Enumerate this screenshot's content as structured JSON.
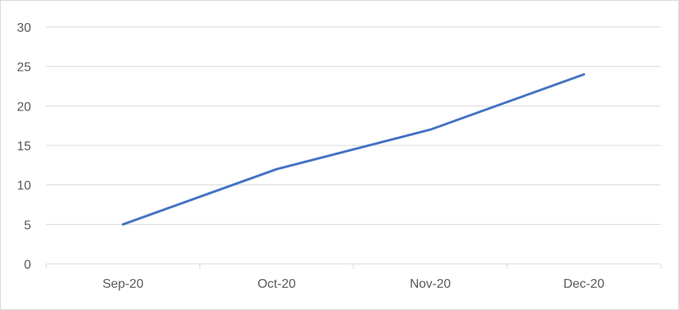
{
  "chart_data": {
    "type": "line",
    "categories": [
      "Sep-20",
      "Oct-20",
      "Nov-20",
      "Dec-20"
    ],
    "series": [
      {
        "values": [
          5,
          12,
          17,
          24
        ],
        "color": "#4472c4"
      }
    ],
    "ylim": [
      0,
      30
    ],
    "yticks": [
      0,
      5,
      10,
      15,
      20,
      25,
      30
    ],
    "grid": true,
    "legend": "none"
  }
}
